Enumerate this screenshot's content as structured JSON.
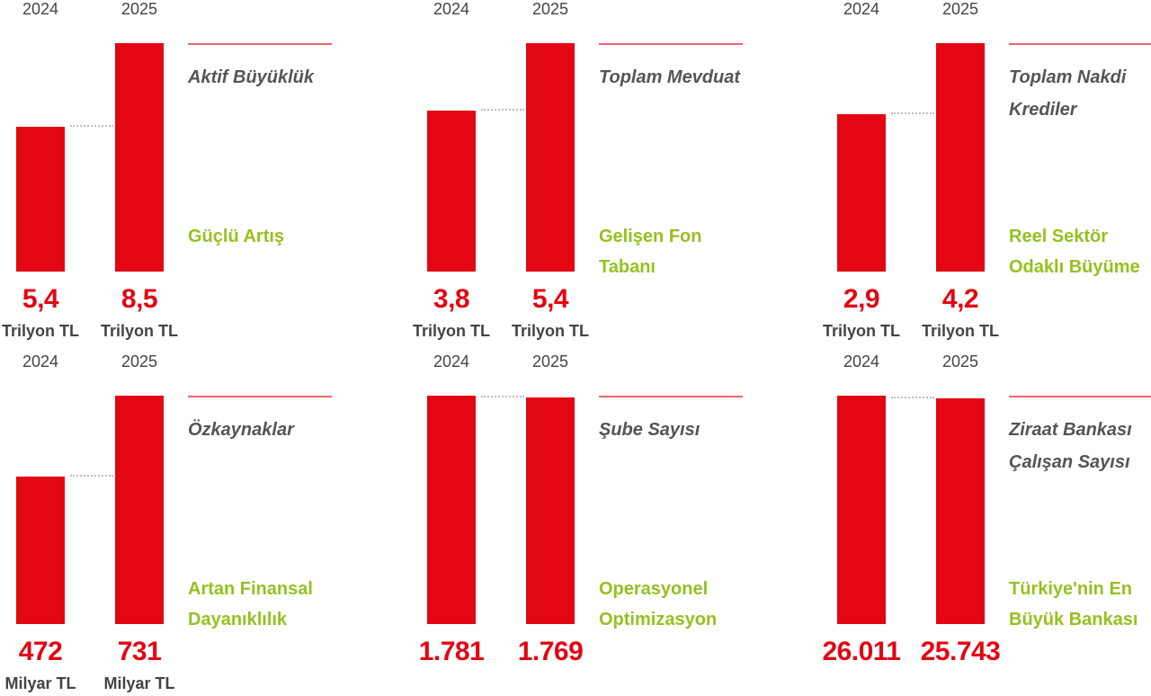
{
  "chart_data": [
    {
      "type": "bar",
      "categories": [
        "2024",
        "2025"
      ],
      "values": [
        5.4,
        8.5
      ],
      "value_labels": [
        "5,4",
        "8,5"
      ],
      "unit": "Trilyon TL",
      "title": "Aktif Büyüklük",
      "subtitle": "Güçlü Artış"
    },
    {
      "type": "bar",
      "categories": [
        "2024",
        "2025"
      ],
      "values": [
        3.8,
        5.4
      ],
      "value_labels": [
        "3,8",
        "5,4"
      ],
      "unit": "Trilyon TL",
      "title": "Toplam Mevduat",
      "subtitle": "Gelişen Fon Tabanı"
    },
    {
      "type": "bar",
      "categories": [
        "2024",
        "2025"
      ],
      "values": [
        2.9,
        4.2
      ],
      "value_labels": [
        "2,9",
        "4,2"
      ],
      "unit": "Trilyon TL",
      "title": "Toplam Nakdi Krediler",
      "subtitle": "Reel Sektör Odaklı Büyüme"
    },
    {
      "type": "bar",
      "categories": [
        "2024",
        "2025"
      ],
      "values": [
        472,
        731
      ],
      "value_labels": [
        "472",
        "731"
      ],
      "unit": "Milyar TL",
      "title": "Özkaynaklar",
      "subtitle": "Artan Finansal Dayanıklılık"
    },
    {
      "type": "bar",
      "categories": [
        "2024",
        "2025"
      ],
      "values": [
        1781,
        1769
      ],
      "value_labels": [
        "1.781",
        "1.769"
      ],
      "unit": "",
      "title": "Şube Sayısı",
      "subtitle": "Operasyonel Optimizasyon"
    },
    {
      "type": "bar",
      "categories": [
        "2024",
        "2025"
      ],
      "values": [
        26011,
        25743
      ],
      "value_labels": [
        "26.011",
        "25.743"
      ],
      "unit": "",
      "title": "Ziraat Bankası Çalışan Sayısı",
      "subtitle": "Türkiye'nin En Büyük Bankası"
    }
  ],
  "colors": {
    "bar": "#e30613",
    "value": "#e30613",
    "subtitle": "#95c11f",
    "title": "#555555",
    "rule": "#e8676c"
  }
}
